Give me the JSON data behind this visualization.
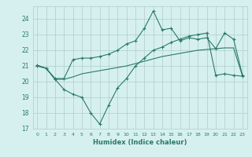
{
  "title": "",
  "xlabel": "Humidex (Indice chaleur)",
  "ylabel": "",
  "bg_color": "#d6f0f0",
  "grid_color": "#b0cccc",
  "line_color": "#2a7a6a",
  "xlim": [
    -0.5,
    23.5
  ],
  "ylim": [
    17,
    24.8
  ],
  "yticks": [
    17,
    18,
    19,
    20,
    21,
    22,
    23,
    24
  ],
  "xticks": [
    0,
    1,
    2,
    3,
    4,
    5,
    6,
    7,
    8,
    9,
    10,
    11,
    12,
    13,
    14,
    15,
    16,
    17,
    18,
    19,
    20,
    21,
    22,
    23
  ],
  "line1_x": [
    0,
    1,
    2,
    3,
    4,
    5,
    6,
    7,
    8,
    9,
    10,
    11,
    12,
    13,
    14,
    15,
    16,
    17,
    18,
    19,
    20,
    21,
    22,
    23
  ],
  "line1_y": [
    21.05,
    20.85,
    20.2,
    20.2,
    21.4,
    21.5,
    21.5,
    21.6,
    21.75,
    22.0,
    22.4,
    22.6,
    23.4,
    24.5,
    23.3,
    23.4,
    22.6,
    22.8,
    22.7,
    22.8,
    22.1,
    23.1,
    22.7,
    20.4
  ],
  "line2_x": [
    0,
    1,
    2,
    3,
    4,
    5,
    6,
    7,
    8,
    9,
    10,
    11,
    12,
    13,
    14,
    15,
    16,
    17,
    18,
    19,
    20,
    21,
    22,
    23
  ],
  "line2_y": [
    21.0,
    20.85,
    20.15,
    19.5,
    19.2,
    19.0,
    18.0,
    17.3,
    18.5,
    19.6,
    20.2,
    21.0,
    21.5,
    22.0,
    22.2,
    22.5,
    22.7,
    22.9,
    23.0,
    23.1,
    20.4,
    20.5,
    20.4,
    20.35
  ],
  "line3_x": [
    0,
    1,
    2,
    3,
    4,
    5,
    6,
    7,
    8,
    9,
    10,
    11,
    12,
    13,
    14,
    15,
    16,
    17,
    18,
    19,
    20,
    21,
    22,
    23
  ],
  "line3_y": [
    21.0,
    20.85,
    20.15,
    20.15,
    20.3,
    20.5,
    20.6,
    20.7,
    20.8,
    20.9,
    21.0,
    21.15,
    21.3,
    21.45,
    21.6,
    21.7,
    21.8,
    21.9,
    22.0,
    22.05,
    22.1,
    22.15,
    22.15,
    20.35
  ]
}
